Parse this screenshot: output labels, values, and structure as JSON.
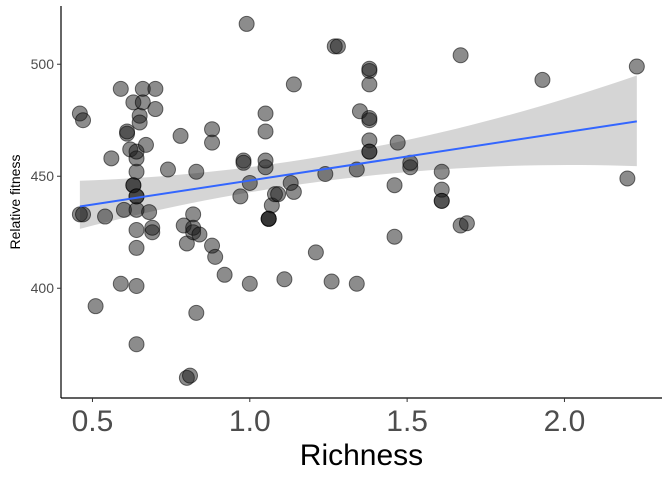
{
  "chart_data": {
    "type": "scatter",
    "title": "",
    "xlabel": "Richness",
    "ylabel": "Relative fitness",
    "xlim": [
      0.4,
      2.31
    ],
    "ylim": [
      351,
      526
    ],
    "x_ticks": [
      0.5,
      1.0,
      1.5,
      2.0
    ],
    "x_tick_labels": [
      "0.5",
      "1.0",
      "1.5",
      "2.0"
    ],
    "y_ticks": [
      400,
      450,
      500
    ],
    "y_tick_labels": [
      "400",
      "450",
      "500"
    ],
    "grid": false,
    "legend": "none",
    "point_color": "#000000",
    "point_opacity": 0.5,
    "point_fill": "#1a1a1a",
    "fit": {
      "method": "linear",
      "x": [
        0.46,
        2.23
      ],
      "y": [
        436.5,
        474.5
      ],
      "line_color": "#3366ff",
      "band_color": "#bebebe",
      "band_lower": [
        426.5,
        454.5
      ],
      "band_upper": [
        448.0,
        495.0
      ],
      "band_mid_lower": 444,
      "band_mid_upper": 455,
      "band_mid_x": 1.05
    },
    "series": [
      {
        "x": [
          0.46,
          0.46,
          0.47,
          0.47,
          0.51,
          0.54,
          0.56,
          0.59,
          0.59,
          0.6,
          0.61,
          0.61,
          0.62,
          0.63,
          0.63,
          0.63,
          0.64,
          0.64,
          0.64,
          0.64,
          0.64,
          0.64,
          0.64,
          0.64,
          0.64,
          0.64,
          0.65,
          0.65,
          0.66,
          0.66,
          0.67,
          0.68,
          0.69,
          0.69,
          0.7,
          0.7,
          0.74,
          0.78,
          0.79,
          0.8,
          0.8,
          0.81,
          0.82,
          0.82,
          0.82,
          0.83,
          0.83,
          0.84,
          0.88,
          0.88,
          0.88,
          0.89,
          0.92,
          0.97,
          0.98,
          0.98,
          0.99,
          1.0,
          1.0,
          1.05,
          1.05,
          1.05,
          1.05,
          1.06,
          1.06,
          1.06,
          1.07,
          1.08,
          1.09,
          1.11,
          1.13,
          1.14,
          1.14,
          1.21,
          1.24,
          1.26,
          1.27,
          1.28,
          1.34,
          1.34,
          1.35,
          1.38,
          1.38,
          1.38,
          1.38,
          1.38,
          1.38,
          1.38,
          1.38,
          1.46,
          1.46,
          1.47,
          1.51,
          1.51,
          1.61,
          1.61,
          1.61,
          1.61,
          1.67,
          1.67,
          1.69,
          1.93,
          2.2,
          2.23
        ],
        "y": [
          478,
          433,
          475,
          433,
          392,
          432,
          458,
          402,
          489,
          435,
          469,
          470,
          462,
          483,
          446,
          446,
          375,
          401,
          418,
          426,
          435,
          441,
          441,
          452,
          458,
          461,
          477,
          474,
          489,
          483,
          464,
          434,
          425,
          427,
          489,
          480,
          453,
          468,
          428,
          420,
          360,
          361,
          425,
          433,
          427,
          452,
          389,
          424,
          471,
          465,
          419,
          414,
          406,
          441,
          457,
          456,
          518,
          447,
          402,
          478,
          470,
          454,
          457,
          431,
          431,
          431,
          437,
          442,
          442,
          404,
          447,
          491,
          443,
          416,
          451,
          403,
          508,
          508,
          453,
          402,
          479,
          497,
          498,
          475,
          491,
          476,
          466,
          461,
          461,
          446,
          423,
          465,
          454,
          456,
          452,
          439,
          444,
          439,
          428,
          504,
          429,
          493,
          449,
          499
        ]
      }
    ]
  }
}
